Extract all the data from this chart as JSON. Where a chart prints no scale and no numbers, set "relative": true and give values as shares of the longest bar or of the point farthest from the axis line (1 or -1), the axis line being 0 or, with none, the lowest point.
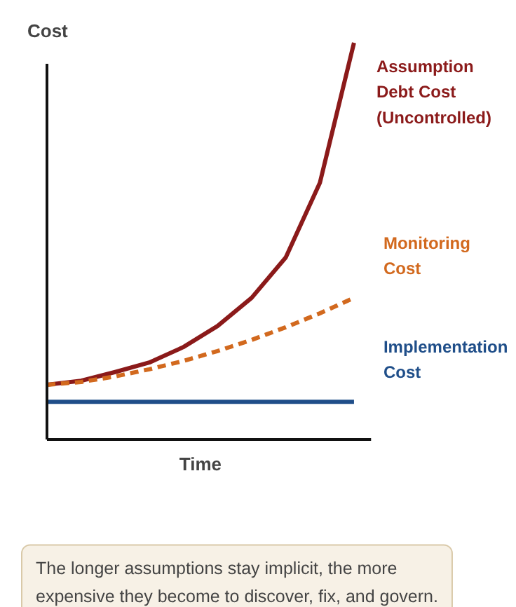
{
  "chart_data": {
    "type": "line",
    "relative": true,
    "ylabel": "Cost",
    "xlabel": "Time",
    "categories": [
      null,
      null,
      null,
      null,
      null,
      null,
      null,
      null,
      null,
      null
    ],
    "series": [
      {
        "name": "Assumption Debt Cost (Uncontrolled)",
        "color": "#8b1a1a",
        "line_style": "solid",
        "values": [
          0.138,
          0.148,
          0.17,
          0.194,
          0.233,
          0.286,
          0.357,
          0.459,
          0.647,
          1
        ]
      },
      {
        "name": "Monitoring Cost",
        "color": "#d2691e",
        "line_style": "dashed",
        "values": [
          0.138,
          0.145,
          0.159,
          0.177,
          0.198,
          0.223,
          0.251,
          0.283,
          0.318,
          0.357
        ]
      },
      {
        "name": "Implementation Cost",
        "color": "#1f4e89",
        "line_style": "solid",
        "values": [
          0.095,
          0.095,
          0.095,
          0.095,
          0.095,
          0.095,
          0.095,
          0.095,
          0.095,
          0.095
        ]
      }
    ],
    "annotations": [
      "The longer assumptions stay implicit, the more expensive they become to discover, fix, and govern."
    ],
    "grid": false,
    "marker": "none"
  }
}
